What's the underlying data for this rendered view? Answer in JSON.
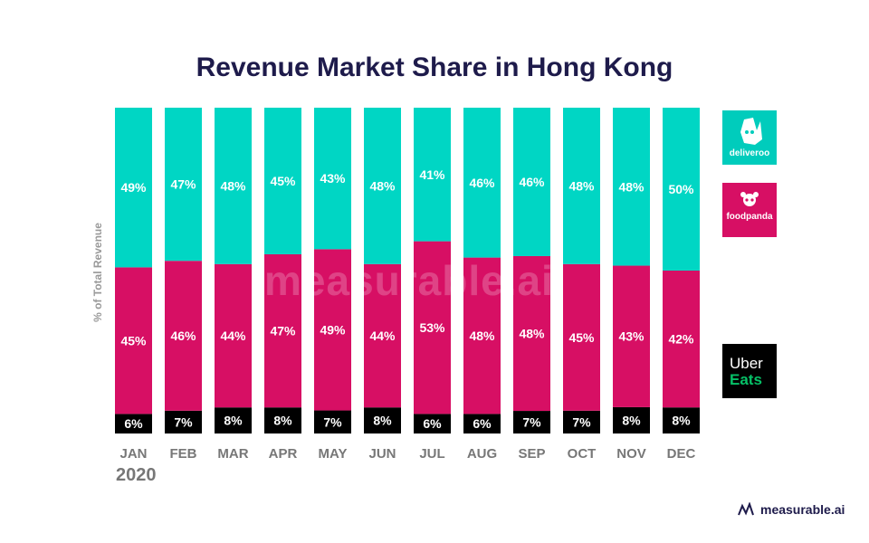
{
  "brand": {
    "watermark": "measurable.ai",
    "footer_text": "measurable.ai"
  },
  "logos": {
    "deliveroo": "deliveroo",
    "foodpanda": "foodpanda",
    "uber": "Uber",
    "eats": "Eats"
  },
  "chart_data": {
    "type": "bar",
    "stacked": true,
    "percent_stacked": true,
    "title": "Revenue Market Share in Hong Kong",
    "ylabel": "% of Total Revenue",
    "year_label": "2020",
    "categories": [
      "JAN",
      "FEB",
      "MAR",
      "APR",
      "MAY",
      "JUN",
      "JUL",
      "AUG",
      "SEP",
      "OCT",
      "NOV",
      "DEC"
    ],
    "series": [
      {
        "name": "Uber Eats",
        "color": "#000000",
        "values": [
          6,
          7,
          8,
          8,
          7,
          8,
          6,
          6,
          7,
          7,
          8,
          8
        ]
      },
      {
        "name": "foodpanda",
        "color": "#d70f64",
        "values": [
          45,
          46,
          44,
          47,
          49,
          44,
          53,
          48,
          48,
          45,
          43,
          42
        ]
      },
      {
        "name": "deliveroo",
        "color": "#00d6c4",
        "values": [
          49,
          47,
          48,
          45,
          43,
          48,
          41,
          46,
          46,
          48,
          48,
          50
        ]
      }
    ],
    "ylim": [
      0,
      100
    ],
    "grid": false,
    "legend_position": "right"
  }
}
